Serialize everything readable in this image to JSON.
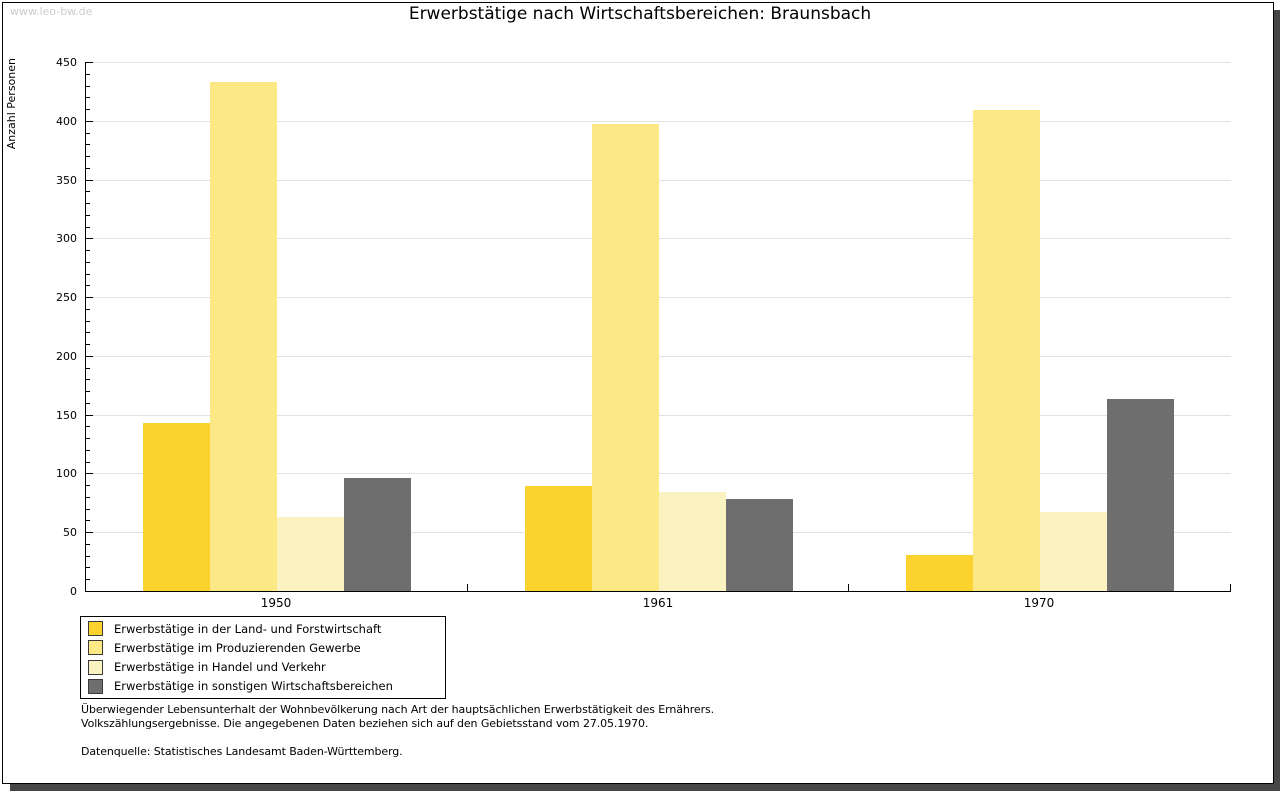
{
  "watermark": "www.leo-bw.de",
  "header": {
    "title": "Erwerbstätige nach Wirtschaftsbereichen: Braunsbach"
  },
  "chart_data": {
    "type": "bar",
    "title": "Erwerbstätige nach Wirtschaftsbereichen: Braunsbach",
    "xlabel": "",
    "ylabel": "Anzahl Personen",
    "categories": [
      "1950",
      "1961",
      "1970"
    ],
    "series": [
      {
        "name": "Erwerbstätige in der Land- und Forstwirtschaft",
        "color": "#FCD32E",
        "values": [
          143,
          89,
          31
        ]
      },
      {
        "name": "Erwerbstätige im Produzierenden Gewerbe",
        "color": "#FCE885",
        "values": [
          433,
          397,
          409
        ]
      },
      {
        "name": "Erwerbstätige in Handel und Verkehr",
        "color": "#FBF2C2",
        "values": [
          63,
          84,
          67
        ]
      },
      {
        "name": "Erwerbstätige in sonstigen Wirtschaftsbereichen",
        "color": "#6E6E6E",
        "values": [
          96,
          78,
          163
        ]
      }
    ],
    "ylim": [
      0,
      450
    ],
    "yticks": [
      0,
      50,
      100,
      150,
      200,
      250,
      300,
      350,
      400,
      450
    ],
    "ytick_step": 50,
    "minor_tick_step": 10,
    "grid": true,
    "gridline_color": "#E2E2E2",
    "legend_position": "bottom-left"
  },
  "footnotes": {
    "line1": "Überwiegender Lebensunterhalt der Wohnbevölkerung nach Art der hauptsächlichen Erwerbstätigkeit des Ernährers.",
    "line2": "Volkszählungsergebnisse. Die angegebenen Daten beziehen sich auf den Gebietsstand vom 27.05.1970.",
    "source": "Datenquelle: Statistisches Landesamt Baden-Württemberg."
  }
}
